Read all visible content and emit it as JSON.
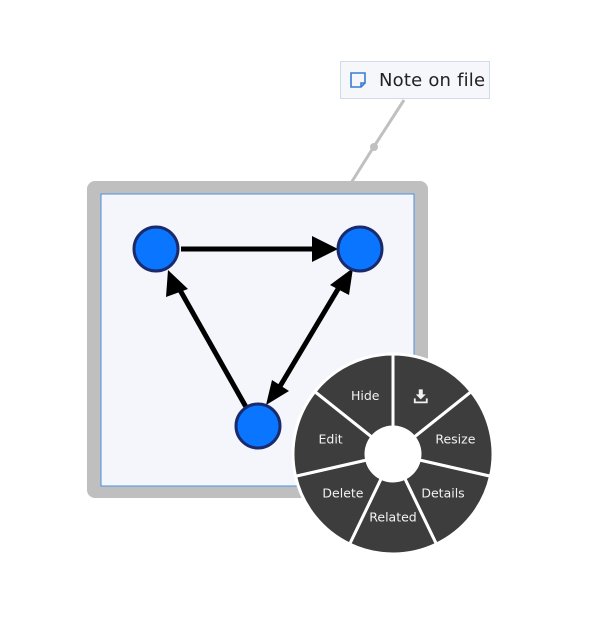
{
  "note": {
    "text": "Note on file",
    "icon": "note-icon"
  },
  "node": {
    "frame_color": "#bfbfbf",
    "canvas_color": "#f4f6fb",
    "canvas_border": "#4a90e2",
    "circle_fill": "#0a75ff",
    "circle_stroke": "#1a2a6b"
  },
  "menu": {
    "background": "#3d3d3d",
    "separator": "#ffffff",
    "items": [
      {
        "id": "hide",
        "label": "Hide"
      },
      {
        "id": "download",
        "label": "",
        "icon": "download-icon"
      },
      {
        "id": "resize",
        "label": "Resize"
      },
      {
        "id": "details",
        "label": "Details"
      },
      {
        "id": "related",
        "label": "Related"
      },
      {
        "id": "delete",
        "label": "Delete"
      },
      {
        "id": "edit",
        "label": "Edit"
      }
    ]
  }
}
